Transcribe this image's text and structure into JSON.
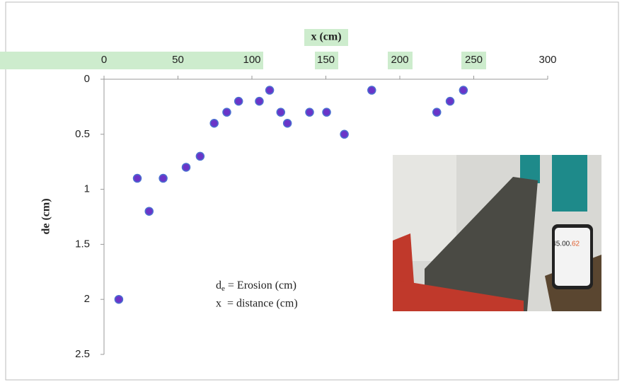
{
  "chart_data": {
    "type": "scatter",
    "x_label": "x (cm)",
    "y_label": "de (cm)",
    "x": [
      10,
      22.5,
      30.5,
      40,
      55.5,
      65,
      74.5,
      83,
      91,
      105,
      112,
      119.5,
      124,
      139,
      150.5,
      162.5,
      181,
      225,
      234,
      243
    ],
    "values": [
      2,
      0.9,
      1.2,
      0.9,
      0.8,
      0.7,
      0.4,
      0.3,
      0.2,
      0.2,
      0.1,
      0.3,
      0.4,
      0.3,
      0.3,
      0.5,
      0.1,
      0.3,
      0.2,
      0.1
    ],
    "color": "#6a35c8",
    "edge_color": "#4a6fd0",
    "xlim": [
      0,
      300
    ],
    "xticks": [
      0,
      50,
      100,
      150,
      200,
      250,
      300
    ],
    "ylim": [
      0,
      2.5
    ],
    "yticks": [
      0,
      0.5,
      1,
      1.5,
      2,
      2.5
    ],
    "y_inverted": true,
    "x_axis_position": "top",
    "annotation_1": [
      "d",
      "e",
      " = Erosion (cm)"
    ],
    "annotation_2": "x  = distance (cm)",
    "photo_text": [
      "45.00.",
      "62"
    ]
  }
}
